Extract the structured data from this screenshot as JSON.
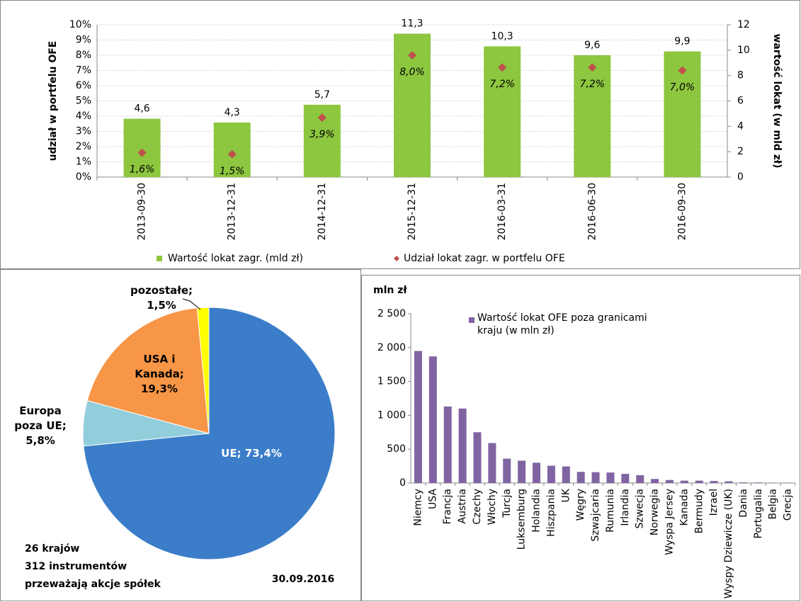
{
  "chart_data": [
    {
      "type": "combo",
      "categories": [
        "2013-09-30",
        "2013-12-31",
        "2014-12-31",
        "2015-12-31",
        "2016-03-31",
        "2016-06-30",
        "2016-09-30"
      ],
      "ylabel": "udział w portfelu OFE",
      "y2label": "wartość lokat (w  mld zł)",
      "ylim": [
        0,
        10
      ],
      "yticks": [
        {
          "value": 0,
          "label": "0%"
        },
        {
          "value": 1,
          "label": "1%"
        },
        {
          "value": 2,
          "label": "2%"
        },
        {
          "value": 3,
          "label": "3%"
        },
        {
          "value": 4,
          "label": "4%"
        },
        {
          "value": 5,
          "label": "5%"
        },
        {
          "value": 6,
          "label": "6%"
        },
        {
          "value": 7,
          "label": "7%"
        },
        {
          "value": 8,
          "label": "8%"
        },
        {
          "value": 9,
          "label": "9%"
        },
        {
          "value": 10,
          "label": "10%"
        }
      ],
      "y2lim": [
        0,
        12
      ],
      "y2ticks": [
        0,
        2,
        4,
        6,
        8,
        10,
        12
      ],
      "grid": true,
      "legend": "bottom",
      "series": [
        {
          "name": "Wartość lokat zagr. (mld zł)",
          "type": "bar",
          "axis": "y2",
          "color": "#8dc63f",
          "values": [
            4.6,
            4.3,
            5.7,
            11.3,
            10.3,
            9.6,
            9.9
          ],
          "value_labels": [
            "4,6",
            "4,3",
            "5,7",
            "11,3",
            "10,3",
            "9,6",
            "9,9"
          ]
        },
        {
          "name": "Udział lokat zagr. w portfelu OFE",
          "type": "scatter",
          "color": "#c0504d",
          "values": [
            1.6,
            1.5,
            3.9,
            8.0,
            7.2,
            7.2,
            7.0
          ],
          "value_labels": [
            "1,6%",
            "1,5%",
            "3,9%",
            "8,0%",
            "7,2%",
            "7,2%",
            "7,0%"
          ]
        }
      ]
    },
    {
      "type": "pie",
      "values": [
        73.4,
        5.8,
        19.3,
        1.5
      ],
      "value_labels": [
        "UE; 73,4%",
        "Europa poza UE; 5,8%",
        "USA i Kanada; 19,3%",
        "pozostałe; 1,5%"
      ],
      "colors": [
        "#3b7dc9",
        "#92cddc",
        "#f79646",
        "#ffff00"
      ],
      "annotations": [
        "26 krajów",
        "312 instrumentów",
        "przeważają akcje spółek",
        "30.09.2016"
      ]
    },
    {
      "type": "bar",
      "ylabel": "mln zł",
      "categories": [
        "Niemcy",
        "USA",
        "Francja",
        "Austria",
        "Czechy",
        "Włochy",
        "Turcja",
        "Luksemburg",
        "Holandia",
        "Hiszpania",
        "UK",
        "Węgry",
        "Szwajcaria",
        "Rumunia",
        "Irlandia",
        "Szwecja",
        "Norwegia",
        "Wyspa Jersey",
        "Kanada",
        "Bermudy",
        "Izrael",
        "Wyspy Dziewicze (UK)",
        "Dania",
        "Portugalia",
        "Belgia",
        "Grecja"
      ],
      "ylim": [
        0,
        2500
      ],
      "yticks": [
        0,
        500,
        {
          "value": 1000,
          "label": "1 000"
        },
        {
          "value": 1500,
          "label": "1 500"
        },
        {
          "value": 2000,
          "label": "2 000"
        },
        {
          "value": 2500,
          "label": "2 500"
        }
      ],
      "grid": false,
      "legend": "top",
      "series": [
        {
          "name": "Wartość lokat OFE poza granicami kraju (w mln zł)",
          "color": "#8064a2",
          "values": [
            1950,
            1870,
            1130,
            1100,
            750,
            590,
            360,
            330,
            300,
            255,
            245,
            165,
            160,
            155,
            135,
            115,
            60,
            45,
            35,
            35,
            30,
            25,
            10,
            8,
            3,
            2
          ]
        }
      ]
    }
  ]
}
